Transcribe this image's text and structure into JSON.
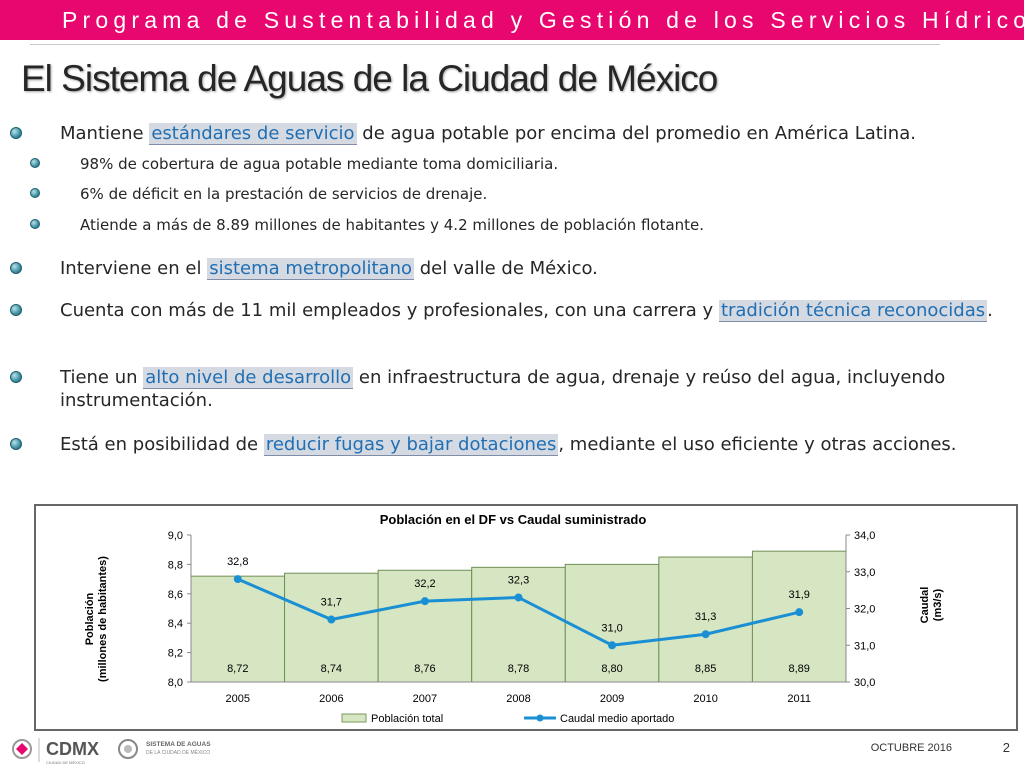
{
  "header": {
    "banner": "Programa de Sustentabilidad y Gestión de los Servicios Hídricos",
    "title": "El Sistema de Aguas de la Ciudad de México"
  },
  "bullets": {
    "b1": {
      "pre": "Mantiene ",
      "hl": "estándares de servicio",
      "post": " de agua potable por encima del promedio en América Latina."
    },
    "s1": "98% de cobertura de agua potable mediante toma domiciliaria.",
    "s2": "6% de déficit en la prestación de servicios de drenaje.",
    "s3": "Atiende a más de 8.89 millones de habitantes y 4.2 millones de población flotante.",
    "b2": {
      "pre": "Interviene en el ",
      "hl": "sistema metropolitano",
      "post": " del valle de México."
    },
    "b3": {
      "pre": "Cuenta con más de 11 mil empleados y profesionales, con una carrera y ",
      "hl": "tradición técnica reconocidas",
      "post": "."
    },
    "b4": {
      "pre": "Tiene un ",
      "hl": "alto nivel de desarrollo",
      "post": " en infraestructura de agua, drenaje y reúso del agua, incluyendo instrumentación."
    },
    "b5": {
      "pre": "Está en posibilidad de ",
      "hl": "reducir fugas y bajar dotaciones",
      "post": ", mediante el uso eficiente y otras acciones."
    }
  },
  "chart_data": {
    "type": "bar",
    "title": "Población en el DF vs Caudal suministrado",
    "categories": [
      "2005",
      "2006",
      "2007",
      "2008",
      "2009",
      "2010",
      "2011"
    ],
    "series": [
      {
        "name": "Población total",
        "type": "area-bar",
        "axis": "left",
        "values": [
          8.72,
          8.74,
          8.76,
          8.78,
          8.8,
          8.85,
          8.89
        ],
        "labels": [
          "8,72",
          "8,74",
          "8,76",
          "8,78",
          "8,80",
          "8,85",
          "8,89"
        ]
      },
      {
        "name": "Caudal medio aportado",
        "type": "line",
        "axis": "right",
        "values": [
          32.8,
          31.7,
          32.2,
          32.3,
          31.0,
          31.3,
          31.9
        ],
        "labels": [
          "32,8",
          "31,7",
          "32,2",
          "32,3",
          "31,0",
          "31,3",
          "31,9"
        ]
      }
    ],
    "ylabel": "Población",
    "ylabel2": "(millones de habitantes)",
    "y2label": "Caudal",
    "y2label2": "(m3/s)",
    "ylim": [
      8.0,
      9.0
    ],
    "y2lim": [
      30.0,
      34.0
    ],
    "yticks": [
      "8,0",
      "8,2",
      "8,4",
      "8,6",
      "8,8",
      "9,0"
    ],
    "y2ticks": [
      "30,0",
      "31,0",
      "32,0",
      "33,0",
      "34,0"
    ],
    "legend_position": "bottom",
    "bar_color": "#d6e6c3",
    "line_color": "#1a8fd4"
  },
  "footer": {
    "logo1": "CDMX",
    "logo1_sub": "CIUDAD DE MÉXICO",
    "logo2": "SISTEMA DE AGUAS",
    "logo2_sub": "DE LA CIUDAD DE MÉXICO",
    "date": "OCTUBRE 2016",
    "page": "2"
  }
}
